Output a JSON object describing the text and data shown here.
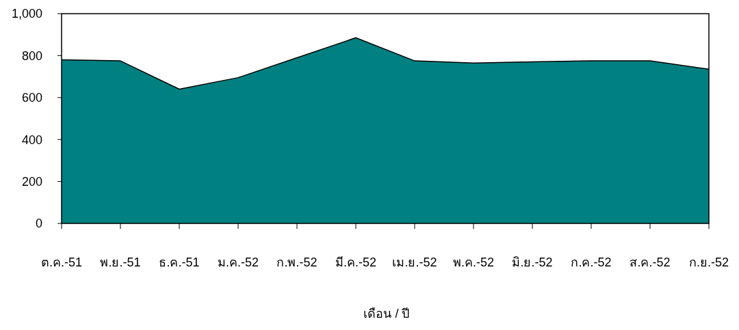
{
  "chart_data": {
    "type": "area",
    "xlabel": "เดือน / ปี",
    "categories": [
      "ต.ค.-51",
      "พ.ย.-51",
      "ธ.ค.-51",
      "ม.ค.-52",
      "ก.พ.-52",
      "มี.ค.-52",
      "เม.ย.-52",
      "พ.ค.-52",
      "มิ.ย.-52",
      "ก.ค.-52",
      "ส.ค.-52",
      "ก.ย.-52"
    ],
    "series": [
      {
        "color": "#008080",
        "values": [
          780,
          775,
          640,
          695,
          790,
          885,
          775,
          765,
          770,
          775,
          775,
          735
        ]
      }
    ],
    "ylim": [
      0,
      1000
    ],
    "yticks": [
      0,
      200,
      400,
      600,
      800,
      {
        "value": 1000,
        "label": "1,000"
      }
    ],
    "grid": false
  }
}
